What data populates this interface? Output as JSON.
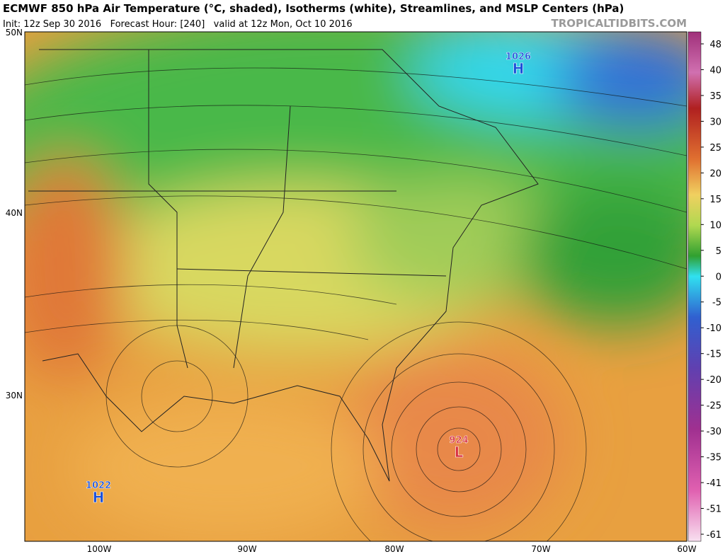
{
  "header": {
    "title": "ECMWF 850 hPa Air Temperature (°C, shaded), Isotherms (white), Streamlines, and MSLP Centers (hPa)",
    "subtitle": "Init: 12z Sep 30 2016   Forecast Hour: [240]   valid at 12z Mon, Oct 10 2016",
    "credit": "TROPICALTIDBITS.COM"
  },
  "map": {
    "lat_labels": [
      "50N",
      "40N",
      "30N"
    ],
    "lon_labels": [
      "100W",
      "90W",
      "80W",
      "70W",
      "60W"
    ],
    "centers": [
      {
        "value": "1026",
        "letter": "H"
      },
      {
        "value": "924",
        "letter": "L"
      },
      {
        "value": "1022",
        "letter": "H"
      }
    ]
  },
  "colorbar": {
    "ticks": [
      48,
      40,
      35,
      30,
      25,
      20,
      15,
      10,
      5,
      0,
      -5,
      -10,
      -15,
      -20,
      -25,
      -30,
      -35,
      -41,
      -51,
      -61
    ]
  }
}
